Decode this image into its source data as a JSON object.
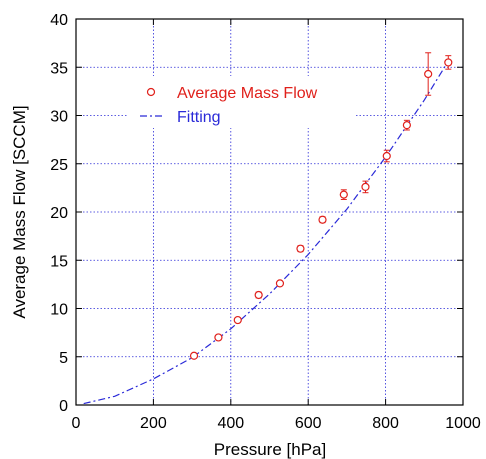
{
  "chart_data": {
    "type": "scatter",
    "xlabel": "Pressure [hPa]",
    "ylabel": "Average Mass Flow [SCCM]",
    "xlim": [
      0,
      1000
    ],
    "ylim": [
      0,
      40
    ],
    "xticks": [
      0,
      200,
      400,
      600,
      800,
      1000
    ],
    "yticks": [
      0,
      5,
      10,
      15,
      20,
      25,
      30,
      35,
      40
    ],
    "grid": true,
    "legend": {
      "placement": "upper-left"
    },
    "series": [
      {
        "name": "Average Mass Flow",
        "kind": "points",
        "marker": "open-circle",
        "color": "#e0201b",
        "x": [
          305,
          368,
          418,
          472,
          527,
          580,
          637,
          692,
          748,
          803,
          855,
          910,
          962
        ],
        "y": [
          5.1,
          7.0,
          8.8,
          11.4,
          12.6,
          16.2,
          19.2,
          21.8,
          22.6,
          25.8,
          29.0,
          34.3,
          35.5
        ],
        "err": [
          0.2,
          0.2,
          0.2,
          0.3,
          0.2,
          0.3,
          0.3,
          0.5,
          0.6,
          0.6,
          0.5,
          2.2,
          0.7
        ]
      },
      {
        "name": "Fitting",
        "kind": "line",
        "style": "dash-dot",
        "color": "#2a2ad8",
        "x": [
          20,
          100,
          200,
          300,
          400,
          500,
          600,
          700,
          800,
          900,
          960
        ],
        "y": [
          0.15,
          0.9,
          2.7,
          4.9,
          7.9,
          11.5,
          15.6,
          20.3,
          25.7,
          31.6,
          35.5
        ]
      }
    ]
  }
}
